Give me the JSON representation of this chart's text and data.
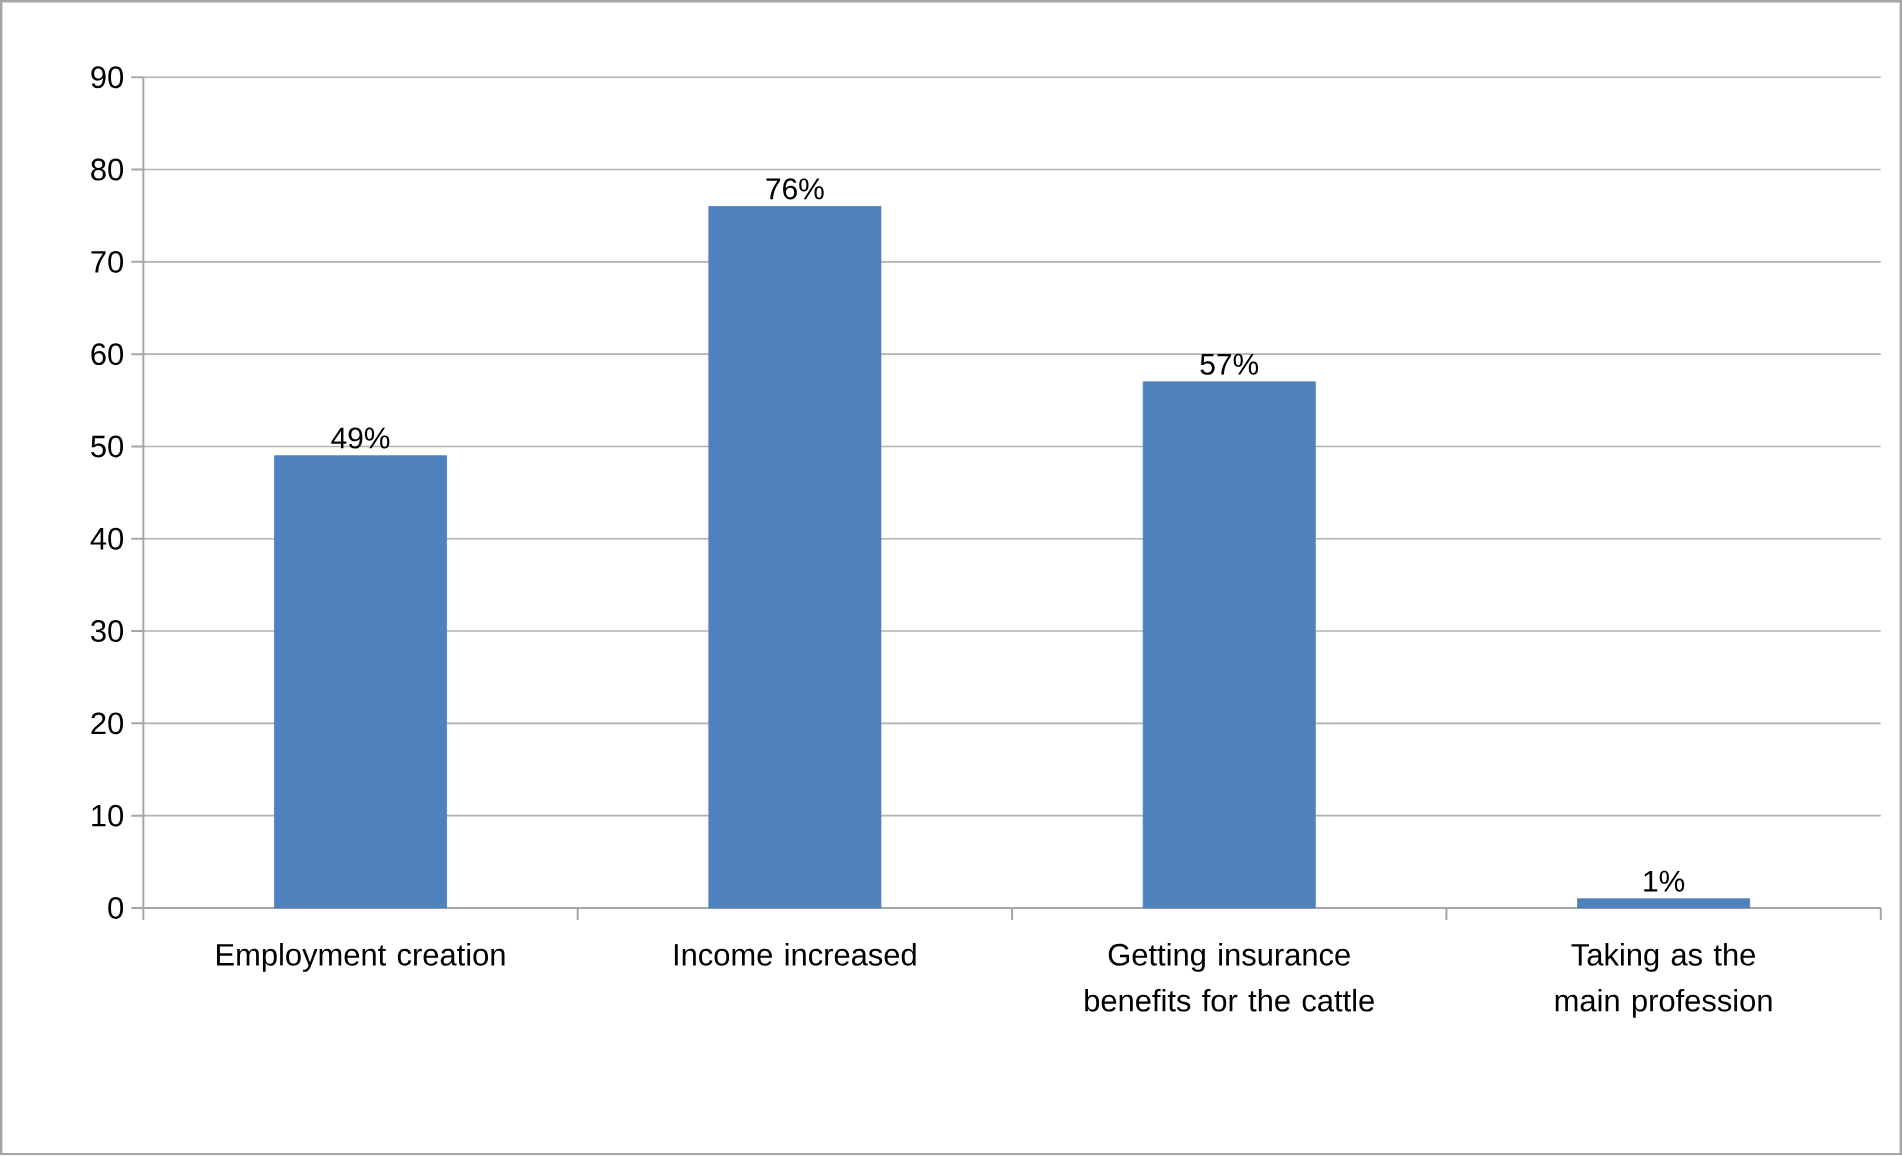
{
  "chart_data": {
    "type": "bar",
    "categories": [
      "Employment creation",
      "Income increased",
      "Getting insurance benefits for the cattle",
      "Taking as the main profession"
    ],
    "values": [
      49,
      76,
      57,
      1
    ],
    "value_labels": [
      "49%",
      "76%",
      "57%",
      "1%"
    ],
    "color": "#4f81bd",
    "ylim": [
      0,
      90
    ],
    "yticks": [
      0,
      10,
      20,
      30,
      40,
      50,
      60,
      70,
      80,
      90
    ],
    "grid": "y"
  }
}
